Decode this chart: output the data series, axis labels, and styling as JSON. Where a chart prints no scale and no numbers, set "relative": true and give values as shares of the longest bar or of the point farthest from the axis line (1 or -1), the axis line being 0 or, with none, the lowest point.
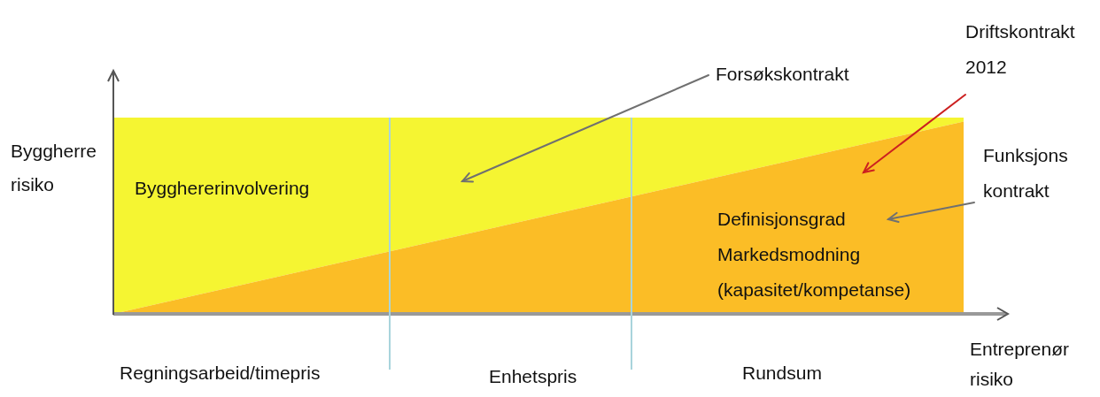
{
  "chart_data": {
    "type": "area",
    "stacked": true,
    "relative": true,
    "legend": false,
    "categories": [
      null,
      null
    ],
    "ref_lines": [
      {
        "axis": "y",
        "value": 0,
        "color": "#999999"
      }
    ],
    "xlabel": "Entreprenør risiko",
    "ylabel": "Byggherre risiko",
    "series": [
      {
        "name": "Definisjonsgrad Markedsmodning (kapasitet/kompetanse)",
        "color": "#fbbd26",
        "values": [
          0,
          0.98
        ]
      },
      {
        "name": "Bygghererinvolvering",
        "color": "#f5f532",
        "values": [
          1,
          0.02
        ]
      }
    ],
    "annotations": [
      "Forsøkskontrakt",
      "Driftskontrakt 2012",
      "Funksjons kontrakt",
      "Regningsarbeid/timepris",
      "Enhetspris",
      "Rundsum"
    ]
  }
}
